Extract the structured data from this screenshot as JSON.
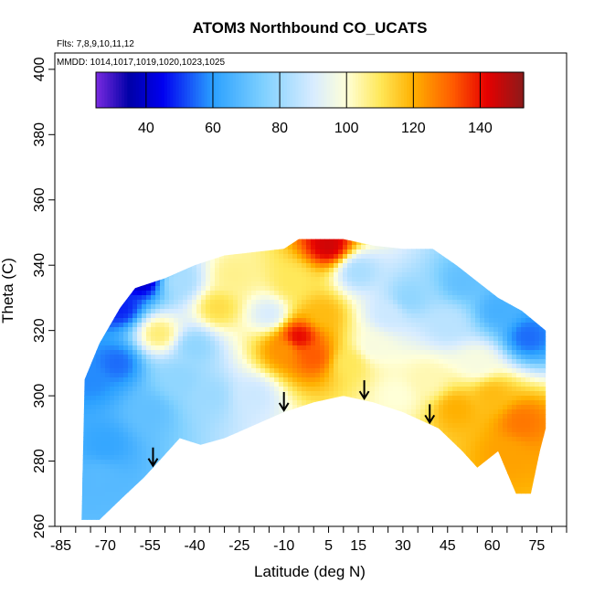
{
  "chart_data": {
    "type": "heatmap",
    "title": "ATOM3 Northbound CO_UCATS",
    "annotations": {
      "flights": "Flts: 7,8,9,10,11,12",
      "dates": "MMDD: 1014,1017,1019,1020,1023,1025"
    },
    "xlabel": "Latitude (deg N)",
    "ylabel": "Theta (C)",
    "xlim": [
      -87,
      85
    ],
    "ylim": [
      260,
      405
    ],
    "x_ticks": [
      -85,
      -70,
      -55,
      -40,
      -25,
      -10,
      5,
      15,
      30,
      45,
      60,
      75
    ],
    "y_ticks": [
      260,
      280,
      300,
      320,
      340,
      360,
      380,
      400
    ],
    "colorbar": {
      "range": [
        25,
        153
      ],
      "ticks": [
        40,
        60,
        80,
        100,
        120,
        140
      ]
    },
    "arrows_lat": [
      -54,
      -10,
      17,
      39
    ],
    "field_boundary": {
      "top": [
        [
          -77,
          305
        ],
        [
          -72,
          316
        ],
        [
          -65,
          327
        ],
        [
          -60,
          333
        ],
        [
          -50,
          336
        ],
        [
          -40,
          340
        ],
        [
          -30,
          343
        ],
        [
          -20,
          344
        ],
        [
          -10,
          345
        ],
        [
          -5,
          348
        ],
        [
          0,
          348
        ],
        [
          10,
          348
        ],
        [
          20,
          346
        ],
        [
          30,
          345
        ],
        [
          40,
          345
        ],
        [
          48,
          340
        ],
        [
          55,
          335
        ],
        [
          62,
          330
        ],
        [
          70,
          326
        ],
        [
          78,
          320
        ]
      ],
      "bottom": [
        [
          78,
          290
        ],
        [
          76,
          283
        ],
        [
          73,
          270
        ],
        [
          68,
          270
        ],
        [
          62,
          283
        ],
        [
          55,
          278
        ],
        [
          50,
          283
        ],
        [
          42,
          290
        ],
        [
          30,
          295
        ],
        [
          20,
          298
        ],
        [
          10,
          300
        ],
        [
          0,
          298
        ],
        [
          -10,
          295
        ],
        [
          -20,
          291
        ],
        [
          -30,
          287
        ],
        [
          -38,
          285
        ],
        [
          -45,
          287
        ],
        [
          -52,
          280
        ],
        [
          -57,
          275
        ],
        [
          -64,
          269
        ],
        [
          -72,
          262
        ],
        [
          -78,
          262
        ]
      ]
    },
    "field_sources": [
      {
        "lat": -5,
        "theta": 318,
        "value": 142
      },
      {
        "lat": 0,
        "theta": 312,
        "value": 132
      },
      {
        "lat": -10,
        "theta": 314,
        "value": 124
      },
      {
        "lat": 3,
        "theta": 325,
        "value": 118
      },
      {
        "lat": -7,
        "theta": 335,
        "value": 110
      },
      {
        "lat": -32,
        "theta": 327,
        "value": 112
      },
      {
        "lat": -27,
        "theta": 337,
        "value": 106
      },
      {
        "lat": -52,
        "theta": 319,
        "value": 108
      },
      {
        "lat": 12,
        "theta": 310,
        "value": 110
      },
      {
        "lat": 20,
        "theta": 315,
        "value": 98
      },
      {
        "lat": 5,
        "theta": 346,
        "value": 145
      },
      {
        "lat": 15,
        "theta": 338,
        "value": 82
      },
      {
        "lat": 32,
        "theta": 330,
        "value": 78
      },
      {
        "lat": 45,
        "theta": 322,
        "value": 85
      },
      {
        "lat": 55,
        "theta": 310,
        "value": 98
      },
      {
        "lat": 60,
        "theta": 300,
        "value": 118
      },
      {
        "lat": 70,
        "theta": 292,
        "value": 128
      },
      {
        "lat": 48,
        "theta": 296,
        "value": 120
      },
      {
        "lat": 38,
        "theta": 305,
        "value": 103
      },
      {
        "lat": 65,
        "theta": 282,
        "value": 122
      },
      {
        "lat": 72,
        "theta": 318,
        "value": 55
      },
      {
        "lat": 62,
        "theta": 326,
        "value": 65
      },
      {
        "lat": 50,
        "theta": 335,
        "value": 70
      },
      {
        "lat": -58,
        "theta": 336,
        "value": 38
      },
      {
        "lat": -65,
        "theta": 327,
        "value": 48
      },
      {
        "lat": -75,
        "theta": 305,
        "value": 58
      },
      {
        "lat": -66,
        "theta": 310,
        "value": 55
      },
      {
        "lat": -70,
        "theta": 285,
        "value": 62
      },
      {
        "lat": -72,
        "theta": 275,
        "value": 68
      },
      {
        "lat": -55,
        "theta": 295,
        "value": 70
      },
      {
        "lat": -45,
        "theta": 305,
        "value": 78
      },
      {
        "lat": -35,
        "theta": 300,
        "value": 80
      },
      {
        "lat": -20,
        "theta": 300,
        "value": 88
      },
      {
        "lat": -15,
        "theta": 325,
        "value": 90
      },
      {
        "lat": -40,
        "theta": 315,
        "value": 78
      },
      {
        "lat": -45,
        "theta": 335,
        "value": 82
      },
      {
        "lat": 25,
        "theta": 325,
        "value": 88
      },
      {
        "lat": 28,
        "theta": 300,
        "value": 100
      }
    ]
  }
}
